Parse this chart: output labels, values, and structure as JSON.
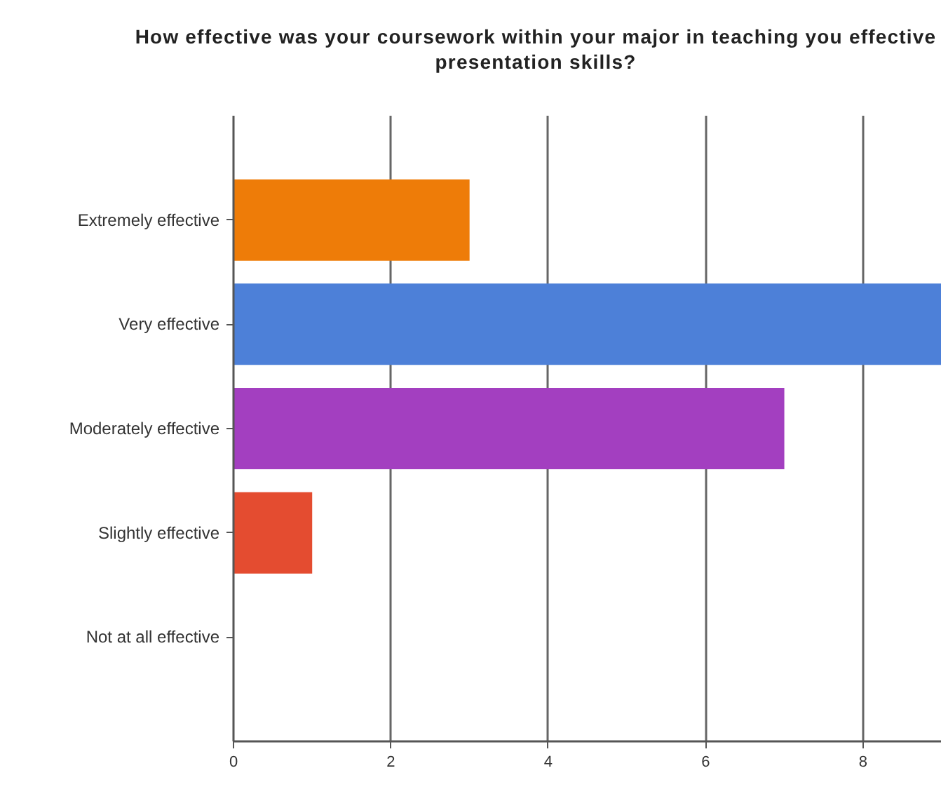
{
  "chart_data": {
    "type": "bar",
    "orientation": "horizontal",
    "title": "How effective was your coursework within your major in teaching you effective presentation skills?",
    "categories": [
      "Extremely effective",
      "Very effective",
      "Moderately effective",
      "Slightly effective",
      "Not at all effective"
    ],
    "values": [
      3,
      9,
      7,
      1,
      0
    ],
    "colors": [
      "#ee7c08",
      "#4d80d8",
      "#a33fc0",
      "#e44c30",
      "#e44c30"
    ],
    "xlim": [
      0,
      9
    ],
    "xticks": [
      0,
      2,
      4,
      6,
      8
    ],
    "grid": "x"
  }
}
